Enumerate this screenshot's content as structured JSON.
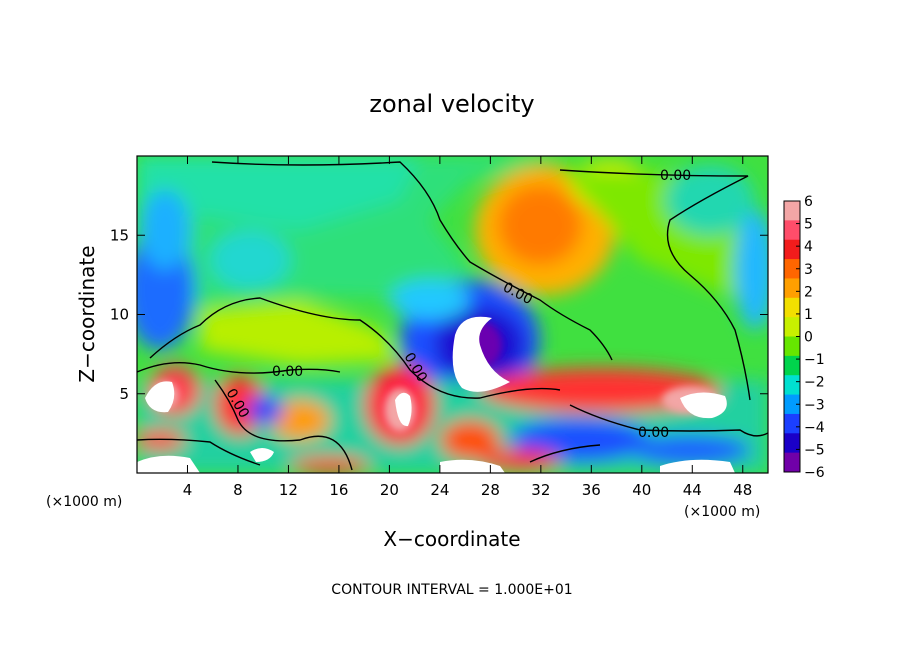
{
  "chart_data": {
    "type": "heatmap",
    "title": "zonal velocity",
    "xlabel": "X−coordinate",
    "ylabel": "Z−coordinate",
    "x_unit_label": "(×1000 m)",
    "y_unit_label": "(×1000 m)",
    "xlim": [
      0,
      50
    ],
    "ylim": [
      0,
      20
    ],
    "x_ticks": [
      4,
      8,
      12,
      16,
      20,
      24,
      28,
      32,
      36,
      40,
      44,
      48
    ],
    "y_ticks": [
      5,
      10,
      15
    ],
    "colorbar": {
      "range": [
        -6,
        6
      ],
      "ticks": [
        6,
        5,
        4,
        3,
        2,
        1,
        0,
        -1,
        -2,
        -3,
        -4,
        -5,
        -6
      ],
      "colors": [
        "#f3a6a6",
        "#ff4d6a",
        "#f21c1c",
        "#ff6600",
        "#ff9f00",
        "#f2df00",
        "#c8f000",
        "#66e600",
        "#00d44c",
        "#00e0d0",
        "#009cff",
        "#1b3fff",
        "#1a00c8",
        "#7000a8"
      ]
    },
    "contour_label": "0.00",
    "contour_interval_text": "CONTOUR INTERVAL = 1.000E+01",
    "features": [
      {
        "x": 33,
        "z": 16,
        "value": 4
      },
      {
        "x": 3,
        "z": 11,
        "value": -4.5
      },
      {
        "x": 27,
        "z": 8.5,
        "value": -5
      },
      {
        "x": 22,
        "z": 5,
        "value": 4
      },
      {
        "x": 40,
        "z": 6,
        "value": 4
      },
      {
        "x": 14,
        "z": 16,
        "value": -1.5
      },
      {
        "x": 6,
        "z": 10,
        "value": 1
      }
    ]
  }
}
